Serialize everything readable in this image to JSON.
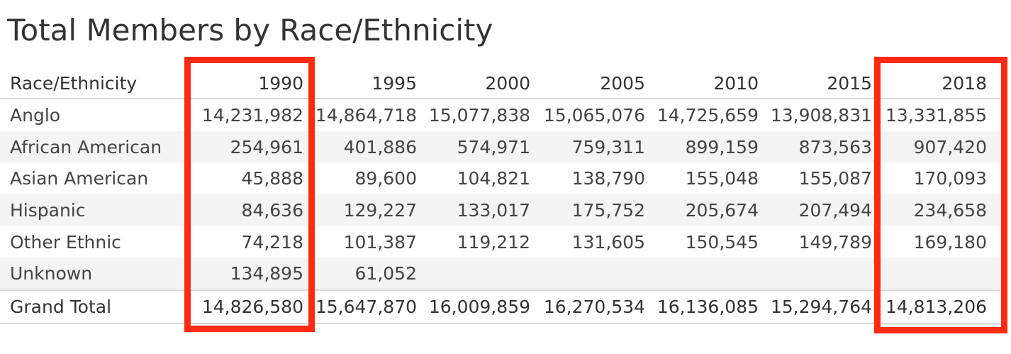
{
  "chart_data": {
    "type": "table",
    "title": "Total Members by Race/Ethnicity",
    "row_header": "Race/Ethnicity",
    "columns": [
      "1990",
      "1995",
      "2000",
      "2005",
      "2010",
      "2015",
      "2018"
    ],
    "rows": [
      {
        "label": "Anglo",
        "values": [
          "14,231,982",
          "14,864,718",
          "15,077,838",
          "15,065,076",
          "14,725,659",
          "13,908,831",
          "13,331,855"
        ]
      },
      {
        "label": "African American",
        "values": [
          "254,961",
          "401,886",
          "574,971",
          "759,311",
          "899,159",
          "873,563",
          "907,420"
        ]
      },
      {
        "label": "Asian American",
        "values": [
          "45,888",
          "89,600",
          "104,821",
          "138,790",
          "155,048",
          "155,087",
          "170,093"
        ]
      },
      {
        "label": "Hispanic",
        "values": [
          "84,636",
          "129,227",
          "133,017",
          "175,752",
          "205,674",
          "207,494",
          "234,658"
        ]
      },
      {
        "label": "Other Ethnic",
        "values": [
          "74,218",
          "101,387",
          "119,212",
          "131,605",
          "150,545",
          "149,789",
          "169,180"
        ]
      },
      {
        "label": "Unknown",
        "values": [
          "134,895",
          "61,052",
          "",
          "",
          "",
          "",
          ""
        ]
      }
    ],
    "total": {
      "label": "Grand Total",
      "values": [
        "14,826,580",
        "15,647,870",
        "16,009,859",
        "16,270,534",
        "16,136,085",
        "15,294,764",
        "14,813,206"
      ]
    },
    "highlighted_columns": [
      "1990",
      "2018"
    ],
    "highlight_color": "#ff2a12"
  }
}
